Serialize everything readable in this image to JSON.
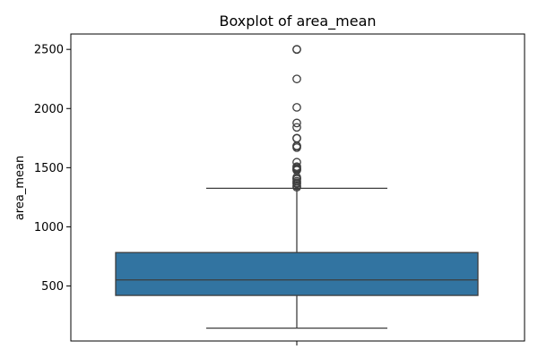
{
  "chart_data": {
    "type": "boxplot",
    "title": "Boxplot of area_mean",
    "xlabel": "",
    "ylabel": "area_mean",
    "ylim": [
      35,
      2630
    ],
    "yticks": [
      500,
      1000,
      1500,
      2000,
      2500
    ],
    "grid": false,
    "box_color": "#3274a1",
    "line_color": "#3d3d3d",
    "box": {
      "whisker_low": 143.5,
      "q1": 420.3,
      "median": 551.1,
      "q3": 782.7,
      "whisker_high": 1326,
      "outliers": [
        1335,
        1347,
        1364,
        1373,
        1386,
        1403,
        1407,
        1419,
        1479,
        1482,
        1491,
        1500,
        1509,
        1546,
        1670,
        1682,
        1685,
        1747,
        1750,
        1841,
        1878,
        2010,
        2250,
        2499,
        2501
      ]
    }
  }
}
